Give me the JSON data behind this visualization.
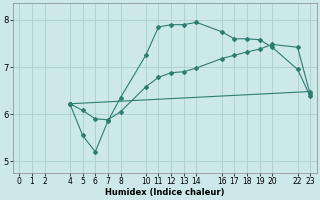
{
  "xlabel": "Humidex (Indice chaleur)",
  "bg_color": "#cce8e8",
  "line_color": "#2e7d72",
  "grid_color": "#aad0d0",
  "line1_x": [
    4,
    5,
    6,
    7,
    8,
    10,
    11,
    12,
    13,
    14,
    16,
    17,
    18,
    19,
    20,
    22,
    23
  ],
  "line1_y": [
    6.22,
    5.55,
    5.2,
    5.85,
    6.35,
    7.25,
    7.85,
    7.9,
    7.9,
    7.95,
    7.75,
    7.6,
    7.6,
    7.58,
    7.42,
    6.95,
    6.38
  ],
  "line2_x": [
    4,
    23
  ],
  "line2_y": [
    6.22,
    6.48
  ],
  "line3_x": [
    4,
    5,
    6,
    7,
    8,
    10,
    11,
    12,
    13,
    14,
    16,
    17,
    18,
    19,
    20,
    22,
    23
  ],
  "line3_y": [
    6.22,
    6.08,
    5.9,
    5.88,
    6.05,
    6.58,
    6.78,
    6.88,
    6.9,
    6.98,
    7.18,
    7.25,
    7.32,
    7.38,
    7.48,
    7.42,
    6.42
  ],
  "xlim": [
    -0.5,
    23.5
  ],
  "ylim": [
    4.75,
    8.35
  ],
  "xticks": [
    0,
    1,
    2,
    4,
    5,
    6,
    7,
    8,
    10,
    11,
    12,
    13,
    14,
    16,
    17,
    18,
    19,
    20,
    22,
    23
  ],
  "yticks": [
    5,
    6,
    7,
    8
  ],
  "tick_fontsize": 5.5,
  "xlabel_fontsize": 6.0,
  "marker_size": 2.0,
  "line_width": 0.8
}
